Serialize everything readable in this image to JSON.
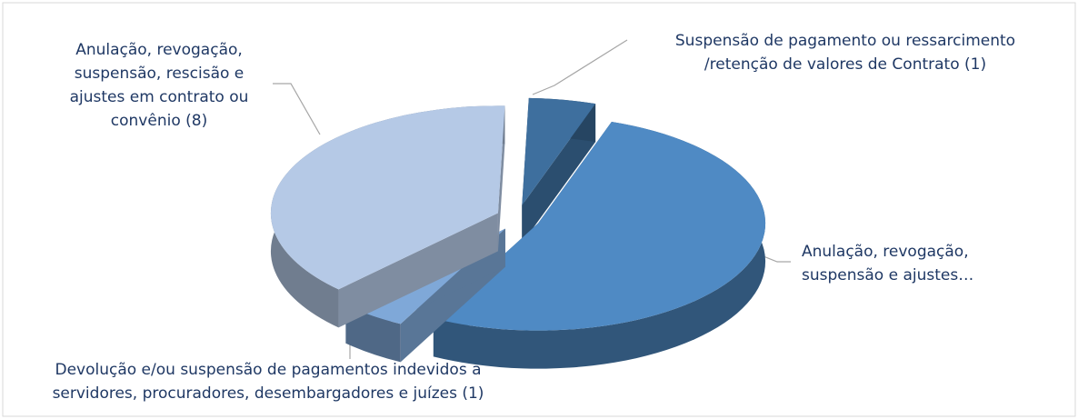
{
  "chart_data": {
    "type": "pie3d",
    "labels": [
      [
        "Suspensão de pagamento ou ressarcimento",
        "/retenção de valores de Contrato (1)"
      ],
      [
        "Anulação, revogação,",
        "suspensão e ajustes…"
      ],
      [
        "Devolução e/ou suspensão de pagamentos indevidos a",
        "servidores, procuradores, desembargadores e juízes  (1)"
      ],
      [
        "Anulação, revogação,",
        "suspensão,  rescisão e",
        "ajustes em contrato ou",
        "convênio (8)"
      ]
    ],
    "values": [
      1,
      11,
      1,
      8
    ],
    "colors": [
      "#3e6f9e",
      "#4f8ac4",
      "#7fa8d8",
      "#b5c9e6"
    ]
  }
}
